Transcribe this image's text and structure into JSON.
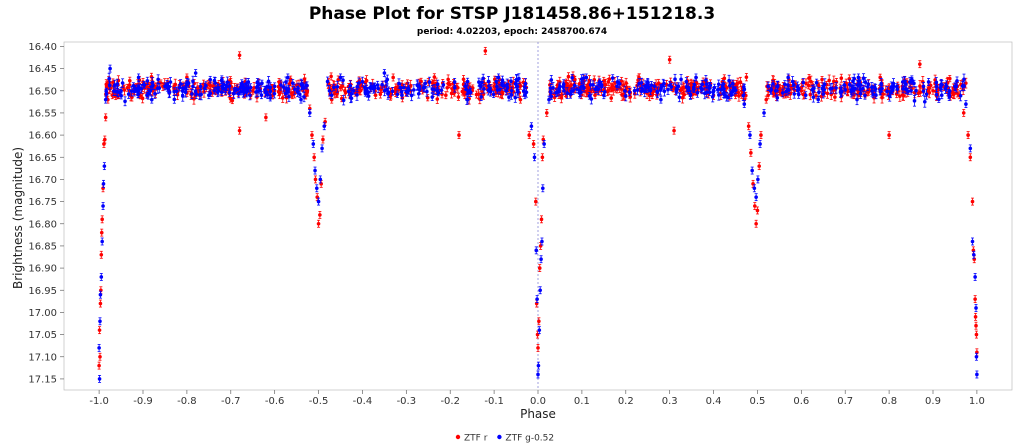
{
  "chart_data": {
    "type": "scatter",
    "title": "Phase Plot for STSP J181458.86+151218.3",
    "subtitle": "period: 4.02203, epoch: 2458700.674",
    "xlabel": "Phase",
    "ylabel": "Brightness (magnitude)",
    "xlim": [
      -1.08,
      1.08
    ],
    "ylim": [
      16.39,
      17.175
    ],
    "y_inverted": true,
    "x_ticks": [
      -1.0,
      -0.9,
      -0.8,
      -0.7,
      -0.6,
      -0.5,
      -0.4,
      -0.3,
      -0.2,
      -0.1,
      0.0,
      0.1,
      0.2,
      0.3,
      0.4,
      0.5,
      0.6,
      0.7,
      0.8,
      0.9,
      1.0
    ],
    "x_tick_labels": [
      "-1.0",
      "-0.9",
      "-0.8",
      "-0.7",
      "-0.6",
      "-0.5",
      "-0.4",
      "-0.3",
      "-0.2",
      "-0.1",
      "0.0",
      "0.1",
      "0.2",
      "0.3",
      "0.4",
      "0.5",
      "0.6",
      "0.7",
      "0.8",
      "0.9",
      "1.0"
    ],
    "y_ticks": [
      16.4,
      16.45,
      16.5,
      16.55,
      16.6,
      16.65,
      16.7,
      16.75,
      16.8,
      16.85,
      16.9,
      16.95,
      17.0,
      17.05,
      17.1,
      17.15
    ],
    "y_tick_labels": [
      "16.40",
      "16.45",
      "16.50",
      "16.55",
      "16.60",
      "16.65",
      "16.70",
      "16.75",
      "16.80",
      "16.85",
      "16.90",
      "16.95",
      "17.00",
      "17.05",
      "17.10",
      "17.15"
    ],
    "grid": false,
    "reference_line_x": 0.0,
    "legend_position": "bottom-center",
    "baseline_magnitude": 16.495,
    "series": [
      {
        "name": "ZTF r",
        "color": "#ff0000",
        "points": [
          [
            -1.0,
            17.12
          ],
          [
            -0.999,
            17.04
          ],
          [
            -0.998,
            17.1
          ],
          [
            -0.997,
            16.98
          ],
          [
            -0.996,
            16.95
          ],
          [
            -0.995,
            16.87
          ],
          [
            -0.994,
            16.82
          ],
          [
            -0.993,
            16.79
          ],
          [
            -0.991,
            16.72
          ],
          [
            -0.989,
            16.62
          ],
          [
            -0.987,
            16.61
          ],
          [
            -0.985,
            16.56
          ],
          [
            -0.98,
            16.52
          ],
          [
            -0.97,
            16.51
          ],
          [
            -0.93,
            16.5
          ],
          [
            -0.9,
            16.48
          ],
          [
            -0.87,
            16.49
          ],
          [
            -0.84,
            16.5
          ],
          [
            -0.8,
            16.47
          ],
          [
            -0.77,
            16.51
          ],
          [
            -0.74,
            16.49
          ],
          [
            -0.7,
            16.48
          ],
          [
            -0.68,
            16.42
          ],
          [
            -0.68,
            16.59
          ],
          [
            -0.65,
            16.5
          ],
          [
            -0.62,
            16.56
          ],
          [
            -0.59,
            16.48
          ],
          [
            -0.56,
            16.51
          ],
          [
            -0.53,
            16.51
          ],
          [
            -0.52,
            16.54
          ],
          [
            -0.515,
            16.6
          ],
          [
            -0.51,
            16.65
          ],
          [
            -0.507,
            16.7
          ],
          [
            -0.503,
            16.74
          ],
          [
            -0.5,
            16.8
          ],
          [
            -0.497,
            16.78
          ],
          [
            -0.494,
            16.71
          ],
          [
            -0.49,
            16.61
          ],
          [
            -0.485,
            16.57
          ],
          [
            -0.47,
            16.52
          ],
          [
            -0.44,
            16.5
          ],
          [
            -0.4,
            16.49
          ],
          [
            -0.37,
            16.51
          ],
          [
            -0.33,
            16.47
          ],
          [
            -0.29,
            16.5
          ],
          [
            -0.25,
            16.48
          ],
          [
            -0.21,
            16.51
          ],
          [
            -0.18,
            16.6
          ],
          [
            -0.15,
            16.5
          ],
          [
            -0.12,
            16.41
          ],
          [
            -0.1,
            16.49
          ],
          [
            -0.07,
            16.5
          ],
          [
            -0.04,
            16.52
          ],
          [
            -0.02,
            16.6
          ],
          [
            -0.01,
            16.62
          ],
          [
            -0.005,
            16.75
          ],
          [
            -0.003,
            16.98
          ],
          [
            -0.001,
            17.05
          ],
          [
            0.0,
            17.08
          ],
          [
            0.002,
            17.02
          ],
          [
            0.004,
            16.9
          ],
          [
            0.006,
            16.85
          ],
          [
            0.008,
            16.79
          ],
          [
            0.01,
            16.65
          ],
          [
            0.012,
            16.61
          ],
          [
            0.02,
            16.55
          ],
          [
            0.03,
            16.51
          ],
          [
            0.07,
            16.49
          ],
          [
            0.1,
            16.5
          ],
          [
            0.13,
            16.51
          ],
          [
            0.16,
            16.48
          ],
          [
            0.2,
            16.5
          ],
          [
            0.23,
            16.47
          ],
          [
            0.26,
            16.51
          ],
          [
            0.3,
            16.43
          ],
          [
            0.31,
            16.59
          ],
          [
            0.34,
            16.5
          ],
          [
            0.38,
            16.49
          ],
          [
            0.42,
            16.48
          ],
          [
            0.45,
            16.51
          ],
          [
            0.47,
            16.52
          ],
          [
            0.48,
            16.58
          ],
          [
            0.485,
            16.64
          ],
          [
            0.49,
            16.71
          ],
          [
            0.494,
            16.76
          ],
          [
            0.497,
            16.8
          ],
          [
            0.5,
            16.77
          ],
          [
            0.504,
            16.67
          ],
          [
            0.508,
            16.6
          ],
          [
            0.52,
            16.52
          ],
          [
            0.56,
            16.49
          ],
          [
            0.6,
            16.5
          ],
          [
            0.64,
            16.49
          ],
          [
            0.68,
            16.48
          ],
          [
            0.72,
            16.51
          ],
          [
            0.76,
            16.5
          ],
          [
            0.8,
            16.6
          ],
          [
            0.83,
            16.49
          ],
          [
            0.87,
            16.44
          ],
          [
            0.9,
            16.5
          ],
          [
            0.93,
            16.49
          ],
          [
            0.96,
            16.51
          ],
          [
            0.97,
            16.55
          ],
          [
            0.98,
            16.6
          ],
          [
            0.985,
            16.65
          ],
          [
            0.99,
            16.75
          ],
          [
            0.992,
            16.86
          ],
          [
            0.994,
            16.88
          ],
          [
            0.996,
            16.97
          ],
          [
            0.997,
            17.01
          ],
          [
            0.998,
            17.03
          ],
          [
            0.999,
            17.05
          ],
          [
            1.0,
            17.09
          ]
        ]
      },
      {
        "name": "ZTF g-0.52",
        "color": "#0000ff",
        "points": [
          [
            -1.0,
            17.08
          ],
          [
            -0.999,
            17.15
          ],
          [
            -0.998,
            17.02
          ],
          [
            -0.997,
            16.96
          ],
          [
            -0.995,
            16.92
          ],
          [
            -0.993,
            16.84
          ],
          [
            -0.991,
            16.76
          ],
          [
            -0.99,
            16.71
          ],
          [
            -0.988,
            16.67
          ],
          [
            -0.985,
            16.52
          ],
          [
            -0.975,
            16.45
          ],
          [
            -0.95,
            16.5
          ],
          [
            -0.91,
            16.47
          ],
          [
            -0.88,
            16.52
          ],
          [
            -0.85,
            16.49
          ],
          [
            -0.81,
            16.5
          ],
          [
            -0.78,
            16.46
          ],
          [
            -0.75,
            16.51
          ],
          [
            -0.72,
            16.49
          ],
          [
            -0.69,
            16.5
          ],
          [
            -0.66,
            16.48
          ],
          [
            -0.63,
            16.51
          ],
          [
            -0.6,
            16.49
          ],
          [
            -0.57,
            16.47
          ],
          [
            -0.54,
            16.52
          ],
          [
            -0.52,
            16.55
          ],
          [
            -0.512,
            16.62
          ],
          [
            -0.508,
            16.68
          ],
          [
            -0.504,
            16.72
          ],
          [
            -0.5,
            16.75
          ],
          [
            -0.496,
            16.7
          ],
          [
            -0.492,
            16.63
          ],
          [
            -0.487,
            16.58
          ],
          [
            -0.47,
            16.51
          ],
          [
            -0.45,
            16.47
          ],
          [
            -0.42,
            16.5
          ],
          [
            -0.38,
            16.49
          ],
          [
            -0.35,
            16.46
          ],
          [
            -0.31,
            16.51
          ],
          [
            -0.27,
            16.49
          ],
          [
            -0.23,
            16.5
          ],
          [
            -0.19,
            16.48
          ],
          [
            -0.16,
            16.52
          ],
          [
            -0.13,
            16.49
          ],
          [
            -0.09,
            16.47
          ],
          [
            -0.06,
            16.5
          ],
          [
            -0.03,
            16.51
          ],
          [
            -0.015,
            16.58
          ],
          [
            -0.008,
            16.65
          ],
          [
            -0.004,
            16.86
          ],
          [
            -0.002,
            16.97
          ],
          [
            0.0,
            17.14
          ],
          [
            0.001,
            17.12
          ],
          [
            0.003,
            17.04
          ],
          [
            0.005,
            16.95
          ],
          [
            0.007,
            16.88
          ],
          [
            0.009,
            16.84
          ],
          [
            0.011,
            16.72
          ],
          [
            0.014,
            16.62
          ],
          [
            0.025,
            16.52
          ],
          [
            0.05,
            16.49
          ],
          [
            0.08,
            16.5
          ],
          [
            0.11,
            16.47
          ],
          [
            0.15,
            16.51
          ],
          [
            0.18,
            16.49
          ],
          [
            0.22,
            16.5
          ],
          [
            0.25,
            16.48
          ],
          [
            0.28,
            16.52
          ],
          [
            0.32,
            16.49
          ],
          [
            0.36,
            16.47
          ],
          [
            0.4,
            16.5
          ],
          [
            0.44,
            16.51
          ],
          [
            0.47,
            16.53
          ],
          [
            0.483,
            16.6
          ],
          [
            0.488,
            16.68
          ],
          [
            0.493,
            16.72
          ],
          [
            0.497,
            16.74
          ],
          [
            0.501,
            16.7
          ],
          [
            0.506,
            16.62
          ],
          [
            0.515,
            16.55
          ],
          [
            0.53,
            16.5
          ],
          [
            0.57,
            16.47
          ],
          [
            0.61,
            16.51
          ],
          [
            0.65,
            16.49
          ],
          [
            0.69,
            16.5
          ],
          [
            0.73,
            16.47
          ],
          [
            0.77,
            16.51
          ],
          [
            0.81,
            16.49
          ],
          [
            0.85,
            16.5
          ],
          [
            0.89,
            16.48
          ],
          [
            0.92,
            16.51
          ],
          [
            0.95,
            16.49
          ],
          [
            0.975,
            16.53
          ],
          [
            0.985,
            16.63
          ],
          [
            0.99,
            16.84
          ],
          [
            0.993,
            16.87
          ],
          [
            0.996,
            16.92
          ],
          [
            0.998,
            16.99
          ],
          [
            0.999,
            17.1
          ],
          [
            1.0,
            17.14
          ]
        ]
      }
    ]
  }
}
